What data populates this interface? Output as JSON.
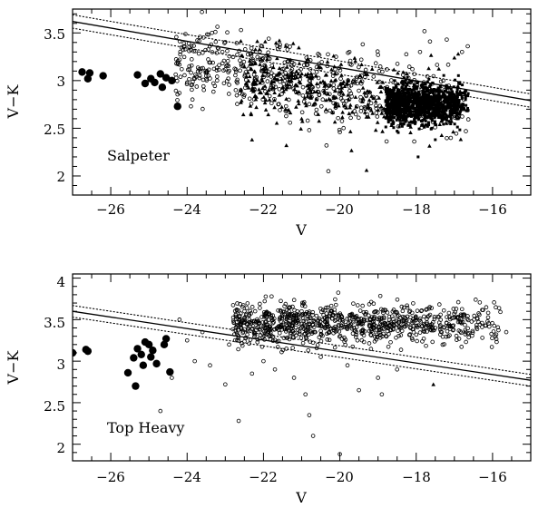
{
  "chart_data": [
    {
      "type": "scatter",
      "panel_label": "Salpeter",
      "xlabel": "V",
      "ylabel": "V−K",
      "xlim": [
        -27,
        -15
      ],
      "ylim": [
        1.8,
        3.75
      ],
      "xticks": [
        -26,
        -24,
        -22,
        -20,
        -18,
        -16
      ],
      "xtick_labels": [
        "−26",
        "−24",
        "−22",
        "−20",
        "−18",
        "−16"
      ],
      "yticks": [
        2,
        2.5,
        3,
        3.5
      ],
      "ytick_labels": [
        "2",
        "2.5",
        "3",
        "3.5"
      ],
      "grid": false,
      "lines": [
        {
          "style": "solid",
          "x": [
            -27,
            -15
          ],
          "y": [
            3.62,
            2.79
          ]
        },
        {
          "style": "dotted",
          "x": [
            -27,
            -15
          ],
          "y": [
            3.69,
            2.86
          ]
        },
        {
          "style": "dotted",
          "x": [
            -27,
            -15
          ],
          "y": [
            3.55,
            2.72
          ]
        }
      ],
      "series": [
        {
          "marker": "large-filled-circle",
          "points": [
            [
              -26.75,
              3.09
            ],
            [
              -26.6,
              3.02
            ],
            [
              -26.55,
              3.08
            ],
            [
              -26.2,
              3.05
            ],
            [
              -25.3,
              3.06
            ],
            [
              -25.1,
              2.97
            ],
            [
              -24.95,
              3.02
            ],
            [
              -24.85,
              2.98
            ],
            [
              -24.7,
              3.07
            ],
            [
              -24.65,
              2.93
            ],
            [
              -24.55,
              3.03
            ],
            [
              -24.4,
              3.0
            ],
            [
              -24.25,
              2.73
            ]
          ]
        },
        {
          "marker": "open-circle",
          "cloud": {
            "n": 520,
            "x0": -24.3,
            "x1": -16.6,
            "slope": -0.06,
            "intercept": 1.74,
            "spread": 0.2,
            "seed": 11
          },
          "points": [
            [
              -20.3,
              2.05
            ],
            [
              -20.35,
              2.32
            ],
            [
              -20.0,
              2.46
            ],
            [
              -23.9,
              2.73
            ],
            [
              -24.2,
              2.87
            ],
            [
              -23.8,
              3.02
            ],
            [
              -22.95,
              3.31
            ],
            [
              -21.5,
              3.12
            ],
            [
              -19.0,
              3.27
            ],
            [
              -18.1,
              3.12
            ],
            [
              -17.9,
              3.3
            ],
            [
              -19.4,
              3.38
            ],
            [
              -17.2,
              3.43
            ],
            [
              -16.8,
              3.3
            ],
            [
              -16.65,
              3.36
            ],
            [
              -19.75,
              3.3
            ],
            [
              -20.1,
              3.25
            ],
            [
              -24.0,
              2.98
            ],
            [
              -23.5,
              3.05
            ],
            [
              -22.5,
              2.85
            ]
          ]
        },
        {
          "marker": "filled-triangle",
          "cloud": {
            "n": 380,
            "x0": -22.6,
            "x1": -16.6,
            "slope": -0.05,
            "intercept": 1.9,
            "spread": 0.17,
            "seed": 23
          },
          "points": [
            [
              -19.3,
              2.06
            ],
            [
              -21.4,
              2.32
            ],
            [
              -22.3,
              2.38
            ],
            [
              -16.9,
              3.28
            ],
            [
              -17.0,
              3.24
            ],
            [
              -21.0,
              2.6
            ]
          ]
        },
        {
          "marker": "filled-square",
          "cloud": {
            "n": 1100,
            "x0": -18.8,
            "x1": -16.6,
            "slope": 0.0,
            "intercept": 2.75,
            "spread": 0.1,
            "seed": 37
          },
          "points": [
            [
              -17.95,
              2.2
            ],
            [
              -17.5,
              2.38
            ],
            [
              -17.7,
              2.52
            ],
            [
              -18.5,
              2.47
            ],
            [
              -16.9,
              2.6
            ]
          ]
        }
      ]
    },
    {
      "type": "scatter",
      "panel_label": "Top Heavy",
      "xlabel": "V",
      "ylabel": "V−K",
      "xlim": [
        -27,
        -15
      ],
      "ylim": [
        1.8,
        4.05
      ],
      "xticks": [
        -26,
        -24,
        -22,
        -20,
        -18,
        -16
      ],
      "xtick_labels": [
        "−26",
        "−24",
        "−22",
        "−20",
        "−18",
        "−16"
      ],
      "yticks": [
        2,
        2.5,
        3,
        3.5,
        4
      ],
      "ytick_labels": [
        "2",
        "2.5",
        "3",
        "3.5",
        "4"
      ],
      "grid": false,
      "lines": [
        {
          "style": "solid",
          "x": [
            -27,
            -15
          ],
          "y": [
            3.6,
            2.77
          ]
        },
        {
          "style": "dotted",
          "x": [
            -27,
            -15
          ],
          "y": [
            3.67,
            2.84
          ]
        },
        {
          "style": "dotted",
          "x": [
            -27,
            -15
          ],
          "y": [
            3.53,
            2.7
          ]
        }
      ],
      "series": [
        {
          "marker": "large-filled-circle",
          "points": [
            [
              -27.0,
              3.1
            ],
            [
              -26.65,
              3.14
            ],
            [
              -26.6,
              3.12
            ],
            [
              -25.55,
              2.86
            ],
            [
              -25.4,
              3.04
            ],
            [
              -25.35,
              2.7
            ],
            [
              -25.3,
              3.15
            ],
            [
              -25.2,
              3.08
            ],
            [
              -25.1,
              3.23
            ],
            [
              -25.0,
              3.2
            ],
            [
              -24.9,
              3.13
            ],
            [
              -24.8,
              2.97
            ],
            [
              -24.6,
              3.2
            ],
            [
              -24.55,
              3.27
            ],
            [
              -24.45,
              2.87
            ],
            [
              -25.15,
              2.95
            ],
            [
              -24.95,
              3.05
            ]
          ]
        },
        {
          "marker": "open-circle",
          "cloud": {
            "n": 900,
            "x0": -22.8,
            "x1": -15.6,
            "slope": 0.0,
            "intercept": 3.45,
            "spread": 0.12,
            "seed": 53
          },
          "points": [
            [
              -20.0,
              1.88
            ],
            [
              -20.7,
              2.1
            ],
            [
              -20.8,
              2.35
            ],
            [
              -22.65,
              2.28
            ],
            [
              -24.7,
              2.4
            ],
            [
              -23.0,
              2.72
            ],
            [
              -23.8,
              3.0
            ],
            [
              -24.2,
              3.5
            ],
            [
              -21.2,
              2.8
            ],
            [
              -19.5,
              2.65
            ],
            [
              -19.0,
              2.8
            ],
            [
              -18.5,
              2.9
            ],
            [
              -22.0,
              3.0
            ],
            [
              -20.5,
              3.05
            ],
            [
              -23.4,
              2.95
            ],
            [
              -24.0,
              3.25
            ],
            [
              -22.3,
              2.85
            ],
            [
              -21.7,
              2.9
            ],
            [
              -20.9,
              2.6
            ],
            [
              -19.8,
              2.95
            ],
            [
              -18.9,
              2.6
            ],
            [
              -22.9,
              3.2
            ],
            [
              -21.4,
              3.15
            ],
            [
              -23.6,
              3.35
            ],
            [
              -24.4,
              2.8
            ]
          ]
        },
        {
          "marker": "filled-triangle",
          "points": [
            [
              -17.55,
              2.72
            ]
          ]
        }
      ]
    }
  ]
}
